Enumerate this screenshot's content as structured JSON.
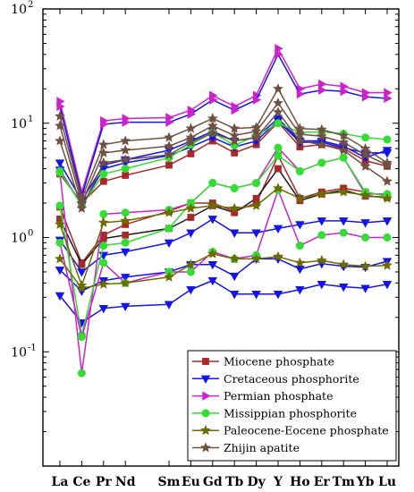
{
  "chart_data": {
    "type": "line",
    "y_scale": "log",
    "ylim": [
      0.01,
      100
    ],
    "y_ticks": [
      {
        "value": 100,
        "base": "10",
        "exp": "2"
      },
      {
        "value": 10,
        "base": "10",
        "exp": "1"
      },
      {
        "value": 1,
        "base": "10",
        "exp": "0"
      },
      {
        "value": 0.1,
        "base": "10",
        "exp": "-1"
      }
    ],
    "categories": [
      "La",
      "Ce",
      "Pr",
      "Nd",
      "Sm",
      "Eu",
      "Gd",
      "Tb",
      "Dy",
      "Y",
      "Ho",
      "Er",
      "Tm",
      "Yb",
      "Lu"
    ],
    "category_positions": [
      0,
      1,
      2,
      3,
      5,
      6,
      7,
      8,
      9,
      10,
      11,
      12,
      13,
      14,
      15
    ],
    "legend_position": "bottom-right",
    "legend": [
      {
        "label": "Miocene phosphate",
        "color": "#a52a2a",
        "marker": "square"
      },
      {
        "label": "Cretaceous phosphorite",
        "color": "#1414e6",
        "marker": "triangle-down"
      },
      {
        "label": "Permian phosphate",
        "color": "#cc22cc",
        "marker": "triangle-right"
      },
      {
        "label": "Missippian phosphorite",
        "color": "#33dd33",
        "marker": "circle"
      },
      {
        "label": "Paleocene-Eocene phosphate",
        "color": "#6b6b00",
        "marker": "star"
      },
      {
        "label": "Zhijin apatite",
        "color": "#705040",
        "marker": "star"
      }
    ],
    "series": [
      {
        "values": [
          1.85,
          0.6,
          1.05,
          1.3,
          1.7,
          2.0,
          2.0,
          1.7,
          2.0,
          5.2,
          2.2,
          2.5,
          2.7,
          2.5,
          2.3
        ],
        "color": "#a52a2a",
        "line": "#a52a2a",
        "marker": "square"
      },
      {
        "values": [
          1.45,
          0.58,
          0.98,
          1.05,
          1.2,
          1.5,
          1.9,
          1.65,
          2.2,
          4.0,
          2.1,
          2.4,
          2.6,
          2.3,
          2.25
        ],
        "color": "#a52a2a",
        "line": "#1a1a1a",
        "marker": "square"
      },
      {
        "values": [
          3.6,
          2.0,
          3.1,
          3.5,
          4.3,
          5.4,
          7.0,
          5.5,
          6.5,
          10.2,
          6.2,
          6.5,
          6.0,
          4.7,
          4.2
        ],
        "color": "#a52a2a",
        "line": "#a52a2a",
        "marker": "square"
      },
      {
        "values": [
          4.5,
          2.1,
          4.3,
          4.8,
          5.8,
          7.0,
          8.5,
          7.0,
          7.5,
          11.0,
          7.0,
          7.0,
          6.3,
          5.0,
          5.8
        ],
        "color": "#1414e6",
        "line": "#1414e6",
        "marker": "triangle-down"
      },
      {
        "values": [
          3.9,
          1.9,
          4.0,
          4.5,
          5.2,
          6.2,
          7.5,
          6.2,
          7.0,
          10.5,
          6.8,
          6.8,
          6.1,
          5.5,
          5.5
        ],
        "color": "#1414e6",
        "line": "#1414e6",
        "marker": "triangle-down"
      },
      {
        "values": [
          0.95,
          0.5,
          0.7,
          0.75,
          0.9,
          1.1,
          1.45,
          1.1,
          1.1,
          1.2,
          1.3,
          1.4,
          1.4,
          1.35,
          1.4
        ],
        "color": "#1414e6",
        "line": "#1414e6",
        "marker": "triangle-down"
      },
      {
        "values": [
          0.52,
          0.34,
          0.42,
          0.45,
          0.5,
          0.58,
          0.58,
          0.46,
          0.65,
          0.65,
          0.53,
          0.59,
          0.56,
          0.55,
          0.62
        ],
        "color": "#1414e6",
        "line": "#1414e6",
        "marker": "triangle-down"
      },
      {
        "values": [
          0.31,
          0.18,
          0.24,
          0.25,
          0.26,
          0.35,
          0.42,
          0.32,
          0.32,
          0.32,
          0.35,
          0.39,
          0.37,
          0.36,
          0.39
        ],
        "color": "#1414e6",
        "line": "#1414e6",
        "marker": "triangle-down"
      },
      {
        "values": [
          15.5,
          2.5,
          10.5,
          11.0,
          11.2,
          13.0,
          17.5,
          14.0,
          17.5,
          45.0,
          20.0,
          22.0,
          21.0,
          18.5,
          18.5
        ],
        "color": "#cc22cc",
        "line": "#cc22cc",
        "marker": "triangle-right"
      },
      {
        "values": [
          14.0,
          2.3,
          9.8,
          10.2,
          10.2,
          12.0,
          16.0,
          13.0,
          16.0,
          40.0,
          18.0,
          19.5,
          19.0,
          17.0,
          16.5
        ],
        "color": "#cc22cc",
        "line": "#1414e6",
        "marker": "triangle-right"
      },
      {
        "values": [
          3.7,
          0.065,
          1.6,
          1.65,
          1.75,
          2.0,
          3.0,
          2.7,
          3.0,
          6.1,
          3.8,
          4.5,
          5.0,
          2.4,
          2.4
        ],
        "color": "#33dd33",
        "line": "#cc22cc",
        "marker": "circle"
      },
      {
        "values": [
          1.9,
          0.14,
          0.85,
          0.9,
          1.2,
          2.0,
          3.0,
          2.7,
          3.0,
          5.2,
          3.8,
          4.5,
          5.0,
          2.5,
          2.3
        ],
        "color": "#33dd33",
        "line": "#33dd33",
        "marker": "circle"
      },
      {
        "values": [
          0.9,
          0.135,
          0.6,
          0.4,
          0.5,
          0.5,
          0.75,
          0.65,
          0.7,
          2.6,
          0.85,
          1.05,
          1.1,
          1.0,
          1.0
        ],
        "color": "#33dd33",
        "line": "#cc22cc",
        "marker": "circle"
      },
      {
        "values": [
          3.8,
          1.9,
          3.6,
          4.0,
          5.0,
          6.5,
          8.3,
          6.4,
          7.8,
          10.0,
          8.3,
          8.4,
          8.1,
          7.5,
          7.2
        ],
        "color": "#33dd33",
        "line": "#33dd33",
        "marker": "circle"
      },
      {
        "values": [
          0.65,
          0.36,
          0.39,
          0.4,
          0.45,
          0.58,
          0.72,
          0.65,
          0.65,
          0.68,
          0.6,
          0.63,
          0.58,
          0.56,
          0.57
        ],
        "color": "#6b6b00",
        "line": "#6b6b00",
        "marker": "star"
      },
      {
        "values": [
          1.3,
          0.38,
          1.35,
          1.4,
          1.65,
          1.8,
          1.9,
          1.8,
          1.9,
          2.7,
          2.2,
          2.4,
          2.5,
          2.35,
          2.2
        ],
        "color": "#6b6b00",
        "line": "#6b6b00",
        "marker": "star"
      },
      {
        "values": [
          11.5,
          2.2,
          6.5,
          7.0,
          7.5,
          9.0,
          11.0,
          9.0,
          9.2,
          20.0,
          9.0,
          8.8,
          7.8,
          6.0,
          4.5
        ],
        "color": "#705040",
        "line": "#705040",
        "marker": "star"
      },
      {
        "values": [
          9.5,
          2.0,
          5.5,
          5.8,
          6.3,
          7.5,
          9.5,
          7.8,
          8.5,
          15.0,
          8.0,
          7.7,
          6.8,
          5.3,
          4.3
        ],
        "color": "#705040",
        "line": "#705040",
        "marker": "star"
      },
      {
        "values": [
          7.0,
          1.8,
          4.5,
          4.8,
          5.3,
          6.8,
          8.2,
          7.0,
          7.5,
          12.5,
          7.0,
          6.5,
          5.8,
          4.2,
          3.1
        ],
        "color": "#705040",
        "line": "#705040",
        "marker": "star"
      }
    ]
  }
}
